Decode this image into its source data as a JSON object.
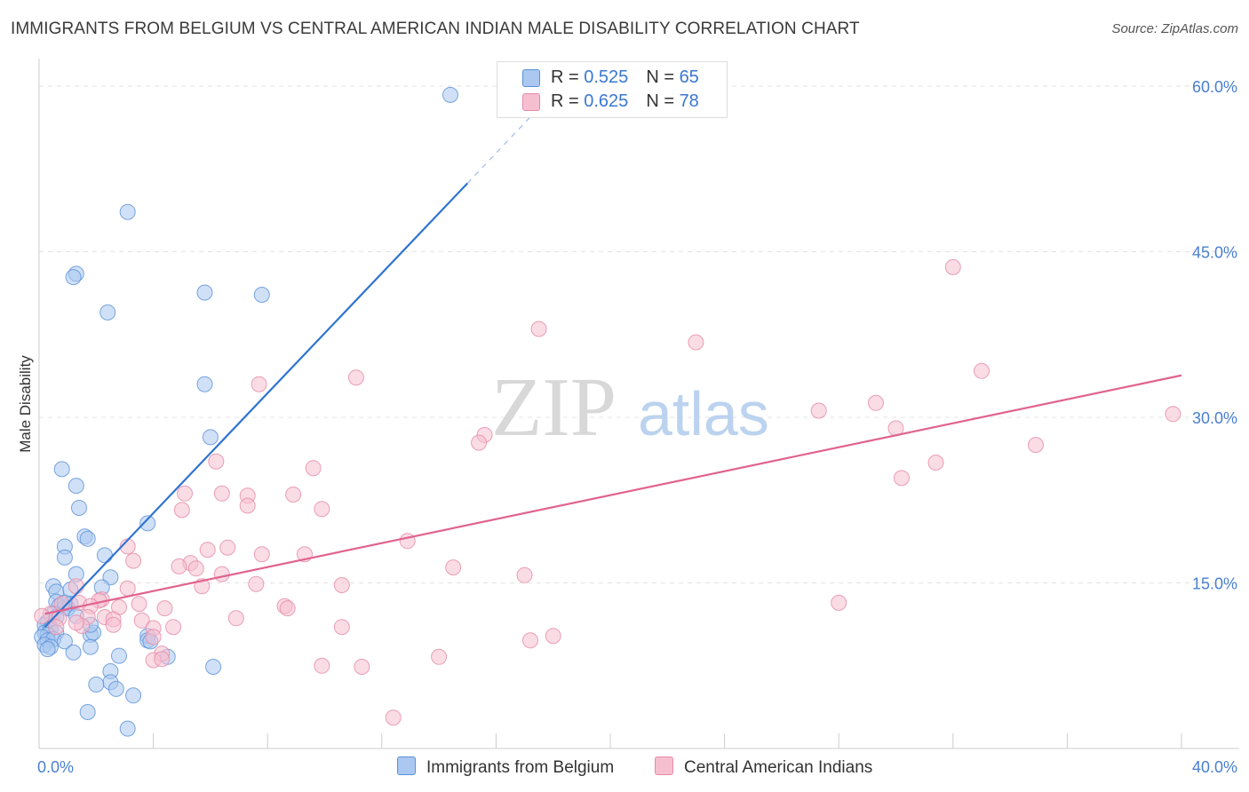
{
  "title": "IMMIGRANTS FROM BELGIUM VS CENTRAL AMERICAN INDIAN MALE DISABILITY CORRELATION CHART",
  "source": "Source: ZipAtlas.com",
  "watermark": {
    "zip": "ZIP",
    "atlas": "atlas"
  },
  "legend": {
    "rows": [
      {
        "r_label": "R = ",
        "r_value": "0.525",
        "n_label": "N = ",
        "n_value": "65"
      },
      {
        "r_label": "R = ",
        "r_value": "0.625",
        "n_label": "N = ",
        "n_value": "78"
      }
    ]
  },
  "colors": {
    "blue_fill": "#aac8f0",
    "blue_stroke": "#5a90d8",
    "blue_line": "#2f74d0",
    "pink_fill": "#f6bfd0",
    "pink_stroke": "#e58aa8",
    "pink_line": "#e0638f",
    "accent_text": "#3a78d0",
    "grid": "#e3e3e3"
  },
  "chart_data": {
    "type": "scatter",
    "xlabel": "",
    "ylabel": "Male Disability",
    "xlim": [
      0,
      40
    ],
    "ylim": [
      0,
      60
    ],
    "x_tick_labels": [
      {
        "value": 0,
        "label": "0.0%"
      },
      {
        "value": 40,
        "label": "40.0%"
      }
    ],
    "y_tick_labels": [
      {
        "value": 15,
        "label": "15.0%"
      },
      {
        "value": 30,
        "label": "30.0%"
      },
      {
        "value": 45,
        "label": "45.0%"
      },
      {
        "value": 60,
        "label": "60.0%"
      }
    ],
    "grid": true,
    "legend_position": "top-center",
    "series": [
      {
        "name": "Immigrants from Belgium",
        "color": "#5a90d8",
        "r": 0.525,
        "n": 65,
        "trend": {
          "x0": 0.2,
          "y0": 11.0,
          "x1": 15.0,
          "y1": 51.2,
          "dash_x1": 17.6,
          "dash_y1": 58.3
        },
        "points": [
          [
            14.4,
            59.2
          ],
          [
            3.1,
            48.6
          ],
          [
            1.3,
            43.0
          ],
          [
            1.2,
            42.7
          ],
          [
            5.8,
            41.3
          ],
          [
            7.8,
            41.1
          ],
          [
            2.4,
            39.5
          ],
          [
            5.8,
            33.0
          ],
          [
            6.0,
            28.2
          ],
          [
            0.8,
            25.3
          ],
          [
            1.3,
            23.8
          ],
          [
            1.4,
            21.8
          ],
          [
            3.8,
            20.4
          ],
          [
            1.6,
            19.2
          ],
          [
            1.7,
            19.0
          ],
          [
            0.9,
            18.3
          ],
          [
            2.3,
            17.5
          ],
          [
            0.9,
            17.3
          ],
          [
            1.3,
            15.8
          ],
          [
            2.5,
            15.5
          ],
          [
            2.2,
            14.6
          ],
          [
            0.5,
            14.7
          ],
          [
            0.6,
            14.2
          ],
          [
            1.1,
            14.4
          ],
          [
            0.6,
            13.3
          ],
          [
            0.7,
            12.9
          ],
          [
            0.9,
            12.8
          ],
          [
            1.1,
            13.1
          ],
          [
            1.0,
            12.7
          ],
          [
            0.9,
            13.2
          ],
          [
            0.5,
            12.2
          ],
          [
            0.3,
            11.5
          ],
          [
            0.6,
            11.9
          ],
          [
            1.3,
            12.0
          ],
          [
            0.2,
            11.2
          ],
          [
            0.4,
            10.9
          ],
          [
            0.2,
            10.5
          ],
          [
            0.4,
            10.8
          ],
          [
            0.6,
            10.5
          ],
          [
            0.3,
            10.3
          ],
          [
            0.1,
            10.1
          ],
          [
            0.3,
            9.8
          ],
          [
            0.5,
            9.9
          ],
          [
            0.9,
            9.7
          ],
          [
            0.2,
            9.4
          ],
          [
            0.4,
            9.2
          ],
          [
            0.3,
            9.0
          ],
          [
            1.8,
            10.3
          ],
          [
            1.8,
            9.2
          ],
          [
            1.2,
            8.7
          ],
          [
            1.9,
            10.5
          ],
          [
            1.8,
            11.2
          ],
          [
            3.8,
            10.2
          ],
          [
            3.8,
            9.8
          ],
          [
            3.9,
            9.7
          ],
          [
            4.5,
            8.3
          ],
          [
            2.8,
            8.4
          ],
          [
            6.1,
            7.4
          ],
          [
            2.5,
            7.0
          ],
          [
            2.5,
            6.0
          ],
          [
            2.0,
            5.8
          ],
          [
            2.7,
            5.4
          ],
          [
            3.3,
            4.8
          ],
          [
            1.7,
            3.3
          ],
          [
            3.1,
            1.8
          ]
        ]
      },
      {
        "name": "Central American Indians",
        "color": "#e58aa8",
        "r": 0.625,
        "n": 78,
        "trend": {
          "x0": 0.2,
          "y0": 12.2,
          "x1": 40.0,
          "y1": 33.8
        },
        "points": [
          [
            32.0,
            43.6
          ],
          [
            17.5,
            38.0
          ],
          [
            23.0,
            36.8
          ],
          [
            33.0,
            34.2
          ],
          [
            11.1,
            33.6
          ],
          [
            7.7,
            33.0
          ],
          [
            29.3,
            31.3
          ],
          [
            27.3,
            30.6
          ],
          [
            39.7,
            30.3
          ],
          [
            30.0,
            29.0
          ],
          [
            15.6,
            28.4
          ],
          [
            15.4,
            27.7
          ],
          [
            34.9,
            27.5
          ],
          [
            31.4,
            25.9
          ],
          [
            6.2,
            26.0
          ],
          [
            9.6,
            25.4
          ],
          [
            30.2,
            24.5
          ],
          [
            5.1,
            23.1
          ],
          [
            6.4,
            23.1
          ],
          [
            7.3,
            22.9
          ],
          [
            8.9,
            23.0
          ],
          [
            7.3,
            22.0
          ],
          [
            5.0,
            21.6
          ],
          [
            9.9,
            21.7
          ],
          [
            12.9,
            18.8
          ],
          [
            3.1,
            18.3
          ],
          [
            5.9,
            18.0
          ],
          [
            6.6,
            18.2
          ],
          [
            7.8,
            17.6
          ],
          [
            9.3,
            17.6
          ],
          [
            3.3,
            17.0
          ],
          [
            5.3,
            16.8
          ],
          [
            4.9,
            16.5
          ],
          [
            5.5,
            16.3
          ],
          [
            14.5,
            16.4
          ],
          [
            17.0,
            15.7
          ],
          [
            6.4,
            15.8
          ],
          [
            7.6,
            14.9
          ],
          [
            10.6,
            14.8
          ],
          [
            5.7,
            14.7
          ],
          [
            3.1,
            14.5
          ],
          [
            1.3,
            14.7
          ],
          [
            28.0,
            13.2
          ],
          [
            2.2,
            13.5
          ],
          [
            2.1,
            13.4
          ],
          [
            1.4,
            13.2
          ],
          [
            0.8,
            13.1
          ],
          [
            3.5,
            13.1
          ],
          [
            8.6,
            12.9
          ],
          [
            8.7,
            12.7
          ],
          [
            4.4,
            12.7
          ],
          [
            2.8,
            12.8
          ],
          [
            1.8,
            12.9
          ],
          [
            0.4,
            12.2
          ],
          [
            0.1,
            12.0
          ],
          [
            1.7,
            11.9
          ],
          [
            2.3,
            11.9
          ],
          [
            0.7,
            11.8
          ],
          [
            2.6,
            11.7
          ],
          [
            3.6,
            11.6
          ],
          [
            6.9,
            11.8
          ],
          [
            2.6,
            11.2
          ],
          [
            10.6,
            11.0
          ],
          [
            4.7,
            11.0
          ],
          [
            1.5,
            11.1
          ],
          [
            4.0,
            10.9
          ],
          [
            0.6,
            11.0
          ],
          [
            18.0,
            10.2
          ],
          [
            17.2,
            9.8
          ],
          [
            4.3,
            8.6
          ],
          [
            4.0,
            8.0
          ],
          [
            4.3,
            8.1
          ],
          [
            14.0,
            8.3
          ],
          [
            9.9,
            7.5
          ],
          [
            11.3,
            7.4
          ],
          [
            12.4,
            2.8
          ],
          [
            4.0,
            10.1
          ],
          [
            1.3,
            11.4
          ]
        ]
      }
    ]
  }
}
